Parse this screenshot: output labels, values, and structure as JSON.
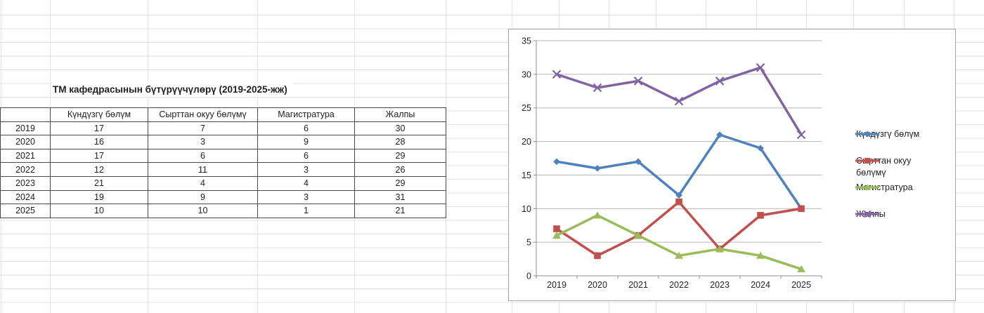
{
  "sheet": {
    "title": "ТМ кафедрасынын бүтүрүүчүлөрү (2019-2025-жж)"
  },
  "table": {
    "columns": [
      "",
      "Күндүзгү бөлүм",
      "Сырттан окуу бөлүмү",
      "Магистратура",
      "Жалпы"
    ],
    "rows": [
      {
        "year": "2019",
        "values": [
          "17",
          "7",
          "6",
          "30"
        ]
      },
      {
        "year": "2020",
        "values": [
          "16",
          "3",
          "9",
          "28"
        ]
      },
      {
        "year": "2021",
        "values": [
          "17",
          "6",
          "6",
          "29"
        ]
      },
      {
        "year": "2022",
        "values": [
          "12",
          "11",
          "3",
          "26"
        ]
      },
      {
        "year": "2023",
        "values": [
          "21",
          "4",
          "4",
          "29"
        ]
      },
      {
        "year": "2024",
        "values": [
          "19",
          "9",
          "3",
          "31"
        ]
      },
      {
        "year": "2025",
        "values": [
          "10",
          "10",
          "1",
          "21"
        ]
      }
    ]
  },
  "chart_data": {
    "type": "line",
    "categories": [
      "2019",
      "2020",
      "2021",
      "2022",
      "2023",
      "2024",
      "2025"
    ],
    "series": [
      {
        "name": "Күндүзгү бөлүм",
        "color": "#4F81BD",
        "marker": "diamond",
        "values": [
          17,
          16,
          17,
          12,
          21,
          19,
          10
        ]
      },
      {
        "name": "Сырттан окуу бөлүмү",
        "color": "#C0504D",
        "marker": "square",
        "values": [
          7,
          3,
          6,
          11,
          4,
          9,
          10
        ]
      },
      {
        "name": "Магистратура",
        "color": "#9BBB59",
        "marker": "triangle",
        "values": [
          6,
          9,
          6,
          3,
          4,
          3,
          1
        ]
      },
      {
        "name": "Жалпы",
        "color": "#8064A2",
        "marker": "x",
        "values": [
          30,
          28,
          29,
          26,
          29,
          31,
          21
        ]
      }
    ],
    "title": "",
    "xlabel": "",
    "ylabel": "",
    "ylim": [
      0,
      35
    ],
    "yticks": [
      0,
      5,
      10,
      15,
      20,
      25,
      30,
      35
    ],
    "grid": true,
    "legend_position": "right",
    "gridline_color": "#b7b7b7",
    "axis_color": "#8c8c8c",
    "tick_label_color": "#262626"
  }
}
